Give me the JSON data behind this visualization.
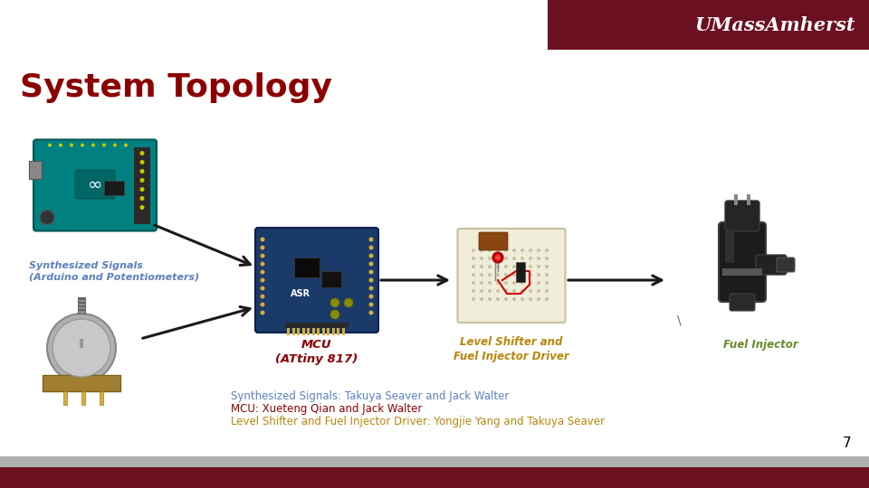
{
  "title": "System Topology",
  "title_color": "#8B0000",
  "title_fontsize": 26,
  "bg_color": "#FFFFFF",
  "header_bar_color": "#6B1020",
  "header_text": "UMassAmherst",
  "header_text_color": "#FFFFFF",
  "footer_bar_color": "#6B1020",
  "footer_gray_color": "#B0B0B0",
  "page_number": "7",
  "label_synth": "Synthesized Signals\n(Arduino and Potentiometers)",
  "label_mcu": "MCU\n(ATtiny 817)",
  "label_level": "Level Shifter and\nFuel Injector Driver",
  "label_fuel": "Fuel Injector",
  "label_synth_color": "#5B7FBF",
  "label_mcu_color": "#8B0000",
  "label_level_color": "#B8860B",
  "label_fuel_color": "#6B8B2B",
  "credit_line1": "Synthesized Signals: Takuya Seaver and Jack Walter",
  "credit_line2": "MCU: Xueteng Qian and Jack Walter",
  "credit_line3": "Level Shifter and Fuel Injector Driver: Yongjie Yang and Takuya Seaver",
  "credit_color1": "#5B7FBF",
  "credit_color2": "#8B0000",
  "credit_color3": "#B8860B",
  "credit_fontsize": 8.5,
  "arrow_color": "#1A1A1A"
}
